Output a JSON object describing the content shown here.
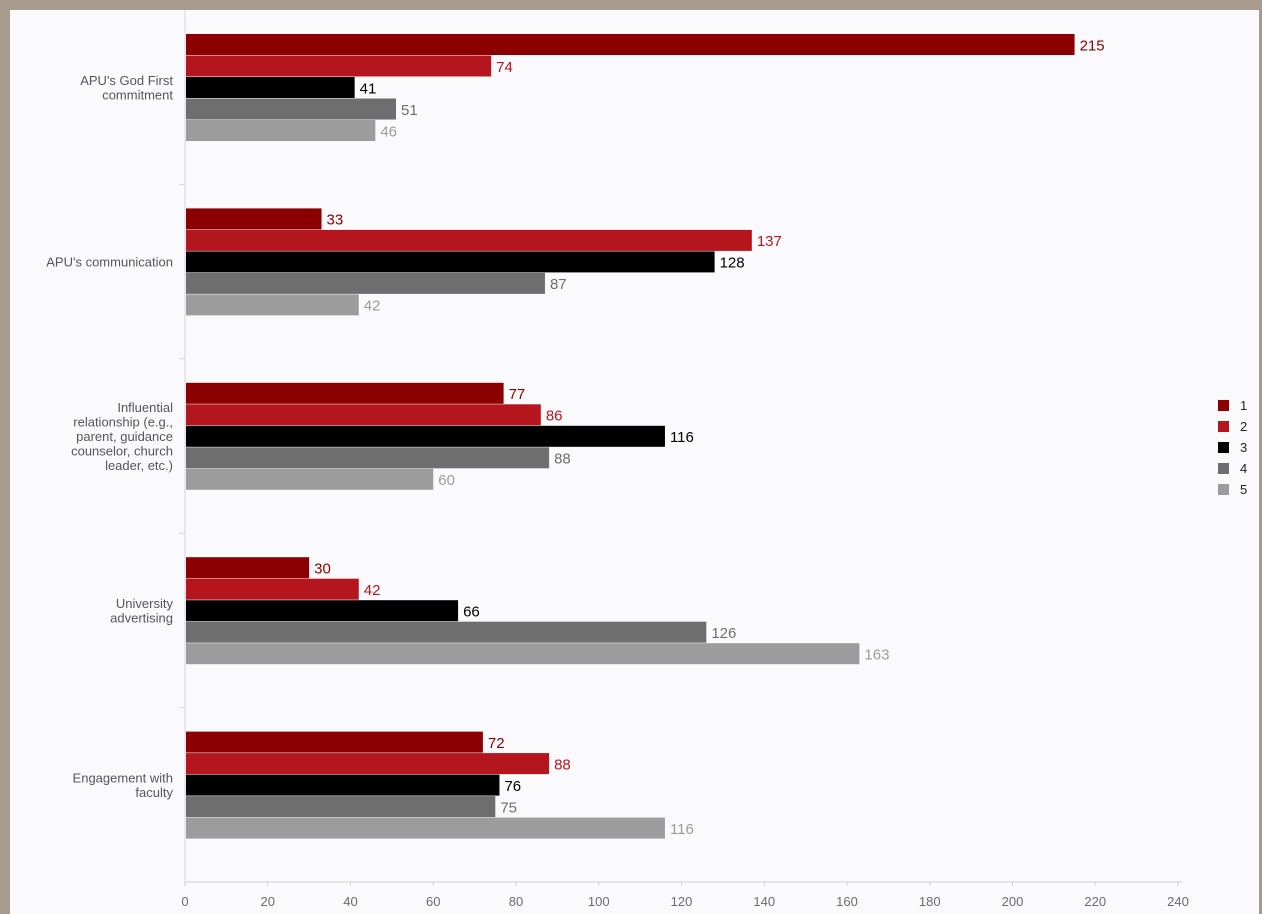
{
  "chart_data": {
    "type": "bar",
    "orientation": "horizontal",
    "title": "",
    "xlabel": "",
    "ylabel": "",
    "xlim": [
      0,
      240
    ],
    "xticks": [
      0,
      20,
      40,
      60,
      80,
      100,
      120,
      140,
      160,
      180,
      200,
      220,
      240
    ],
    "grid": false,
    "legend_position": "right",
    "categories": [
      [
        "APU's God First",
        "commitment"
      ],
      [
        "APU's communication"
      ],
      [
        "Influential",
        "relationship (e.g.,",
        "parent, guidance",
        "counselor, church",
        "leader, etc.)"
      ],
      [
        "University",
        "advertising"
      ],
      [
        "Engagement with",
        "faculty"
      ]
    ],
    "series": [
      {
        "name": "1",
        "color": "#8b0000",
        "label_color": "#8b0000",
        "values": [
          215,
          33,
          77,
          30,
          72
        ]
      },
      {
        "name": "2",
        "color": "#b5161e",
        "label_color": "#b5161e",
        "values": [
          74,
          137,
          86,
          42,
          88
        ]
      },
      {
        "name": "3",
        "color": "#000000",
        "label_color": "#000000",
        "values": [
          41,
          128,
          116,
          66,
          76
        ]
      },
      {
        "name": "4",
        "color": "#6e6e6e",
        "label_color": "#6e6e6e",
        "values": [
          51,
          87,
          88,
          126,
          75
        ]
      },
      {
        "name": "5",
        "color": "#9c9c9c",
        "label_color": "#9c9c9c",
        "values": [
          46,
          42,
          60,
          163,
          116
        ]
      }
    ]
  }
}
